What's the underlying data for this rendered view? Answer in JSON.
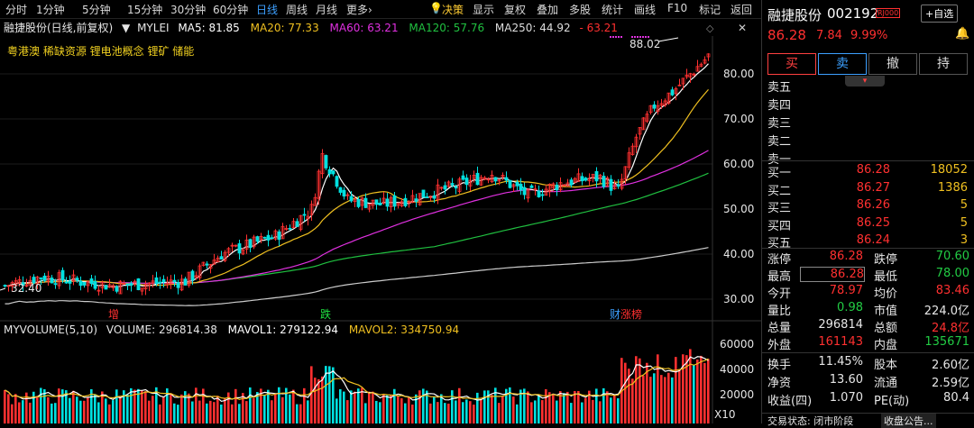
{
  "toolbar": {
    "items": [
      "分时",
      "1分钟",
      "5分钟",
      "15分钟",
      "30分钟",
      "60分钟",
      "日线",
      "周线",
      "月线",
      "更多"
    ],
    "more_arrow": "›",
    "active": "日线",
    "right_items": [
      "决策",
      "显示",
      "复权",
      "叠加",
      "多股",
      "统计",
      "画线",
      "F10",
      "标记",
      "返回"
    ]
  },
  "indicator_line": {
    "stock": "融捷股份(日线,前复权)",
    "indicator": "MYLEI",
    "ma5": "MA5: 81.85",
    "ma20": "MA20: 77.33",
    "ma60": "MA60: 63.21",
    "ma120": "MA120: 57.76",
    "ma250": "MA250: 44.92",
    "extra": "- 63.21"
  },
  "concepts": "粤港澳 稀缺资源 锂电池概念 锂矿 储能",
  "annotations": {
    "high_price": "88.02",
    "low_price": "32.40",
    "marker_zeng": "增",
    "marker_die": "跌",
    "marker_cai": "财",
    "marker_zhangbang": "涨榜"
  },
  "price_axis": [
    "80.00",
    "70.00",
    "60.00",
    "50.00",
    "40.00",
    "30.00"
  ],
  "volume_axis": [
    "60000",
    "40000",
    "20000"
  ],
  "volume_line": {
    "label": "MYVOLUME(5,10)",
    "volume": "VOLUME: 296814.38",
    "mavol1": "MAVOL1: 279122.94",
    "mavol2": "MAVOL2: 334750.94"
  },
  "volume_unit": "X10",
  "panel": {
    "name": "融捷股份",
    "code": "002192",
    "tag": "RJ000",
    "add_btn": "+自选",
    "price": "86.28",
    "change": "7.84",
    "pct": "9.99%",
    "buttons": [
      "买",
      "卖",
      "撤",
      "持"
    ],
    "sells": [
      "卖五",
      "卖四",
      "卖三",
      "卖二",
      "卖一"
    ],
    "buys": [
      {
        "label": "买一",
        "price": "86.28",
        "vol": "18052"
      },
      {
        "label": "买二",
        "price": "86.27",
        "vol": "1386"
      },
      {
        "label": "买三",
        "price": "86.26",
        "vol": "5"
      },
      {
        "label": "买四",
        "price": "86.25",
        "vol": "5"
      },
      {
        "label": "买五",
        "price": "86.24",
        "vol": "3"
      }
    ],
    "stats": [
      {
        "l1": "涨停",
        "v1": "86.28",
        "c1": "red",
        "l2": "跌停",
        "v2": "70.60",
        "c2": "green"
      },
      {
        "l1": "最高",
        "v1": "86.28",
        "c1": "red",
        "l2": "最低",
        "v2": "78.00",
        "c2": "green"
      },
      {
        "l1": "今开",
        "v1": "78.97",
        "c1": "red",
        "l2": "均价",
        "v2": "83.46",
        "c2": "red"
      },
      {
        "l1": "量比",
        "v1": "0.98",
        "c1": "green",
        "l2": "市值",
        "v2": "224.0亿",
        "c2": "white"
      },
      {
        "l1": "总量",
        "v1": "296814",
        "c1": "white",
        "l2": "总额",
        "v2": "24.8亿",
        "c2": "red"
      },
      {
        "l1": "外盘",
        "v1": "161143",
        "c1": "red",
        "l2": "内盘",
        "v2": "135671",
        "c2": "green"
      }
    ],
    "stats2": [
      {
        "l1": "换手",
        "v1": "11.45%",
        "l2": "股本",
        "v2": "2.60亿"
      },
      {
        "l1": "净资",
        "v1": "13.60",
        "l2": "流通",
        "v2": "2.59亿"
      },
      {
        "l1": "收益(四)",
        "v1": "1.070",
        "l2": "PE(动)",
        "v2": "80.4"
      }
    ],
    "footer_status": "交易状态: 闭市阶段",
    "footer_news": "收盘公告..."
  },
  "colors": {
    "up": "#ff3030",
    "down": "#00e0e0",
    "ma5": "#ffffff",
    "ma20": "#f0c020",
    "ma60": "#e030e0",
    "ma120": "#20c040",
    "ma250": "#cccccc"
  }
}
